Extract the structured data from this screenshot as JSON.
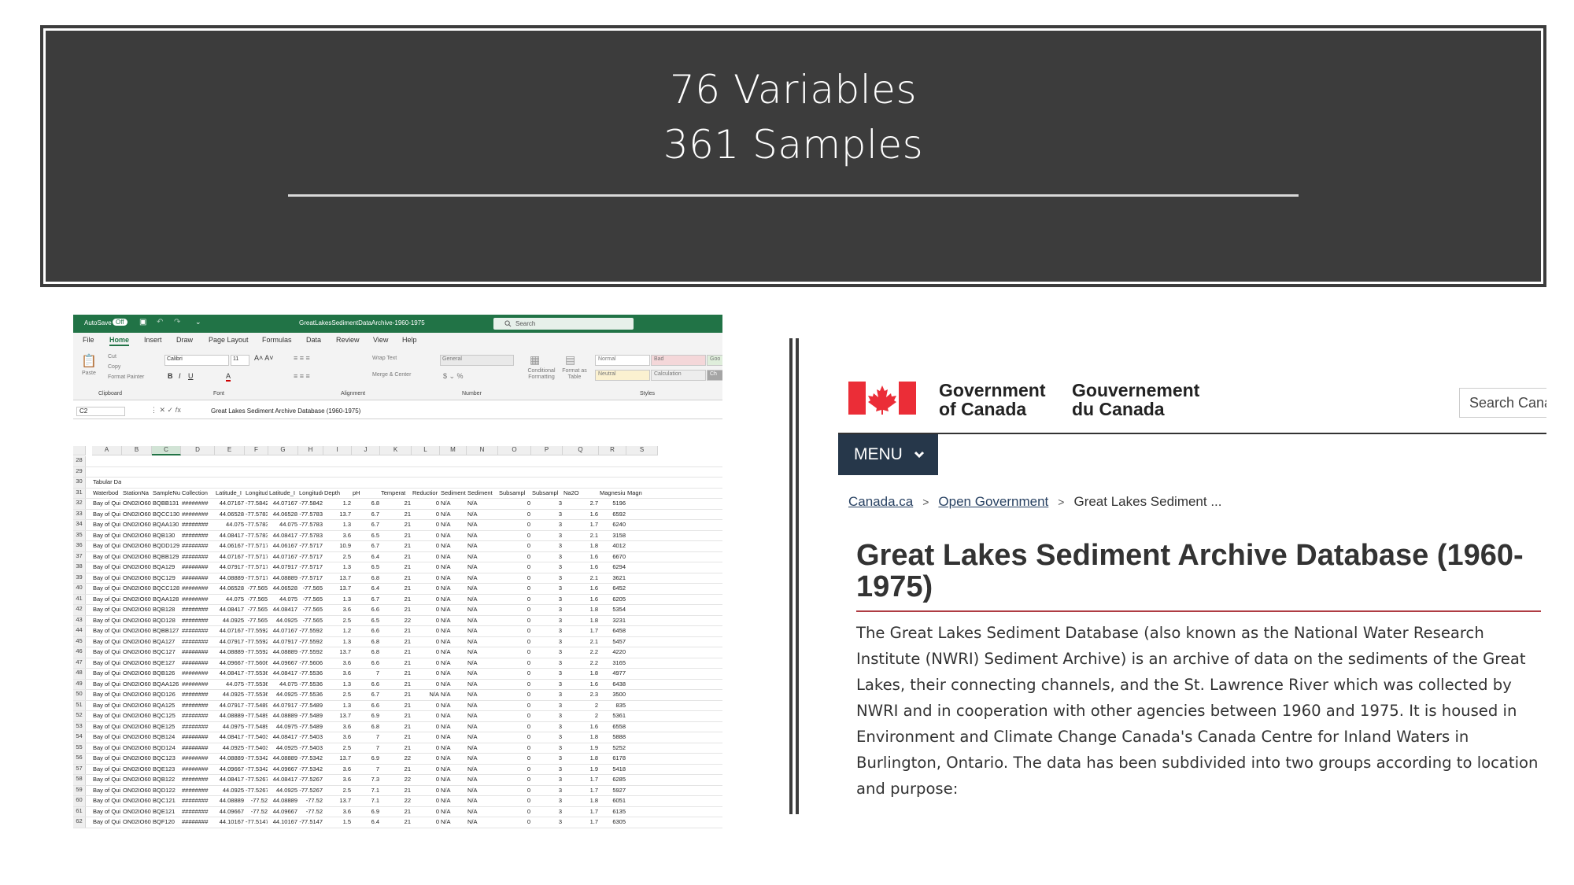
{
  "banner": {
    "line1": "76 Variables",
    "line2": "361 Samples"
  },
  "excel": {
    "title_bar": {
      "autosave": "AutoSave",
      "autosave_state": "Off",
      "filename": "GreatLakesSedimentDataArchive-1960-1975",
      "search_placeholder": "Search"
    },
    "tabs": [
      "File",
      "Home",
      "Insert",
      "Draw",
      "Page Layout",
      "Formulas",
      "Data",
      "Review",
      "View",
      "Help"
    ],
    "active_tab": "Home",
    "ribbon": {
      "paste": "Paste",
      "cut": "Cut",
      "copy": "Copy",
      "format_painter": "Format Painter",
      "font_name": "Calibri",
      "font_size": "11",
      "wrap_text": "Wrap Text",
      "merge_center": "Merge & Center",
      "number_format": "General",
      "conditional_formatting": "Conditional Formatting",
      "format_as_table": "Format as Table",
      "style_normal": "Normal",
      "style_bad": "Bad",
      "style_good": "Goo",
      "style_neutral": "Neutral",
      "style_calculation": "Calculation",
      "style_check": "Ch",
      "groups": [
        "Clipboard",
        "Font",
        "Alignment",
        "Number",
        "Styles"
      ]
    },
    "name_box": "C2",
    "formula": "Great Lakes Sediment Archive Database (1960-1975)",
    "columns": [
      "A",
      "B",
      "C",
      "D",
      "E",
      "F",
      "G",
      "H",
      "I",
      "J",
      "K",
      "L",
      "M",
      "N",
      "O",
      "P",
      "Q",
      "R",
      "S"
    ],
    "empty_rows": [
      "28",
      "29"
    ],
    "section_row": {
      "num": "30",
      "text": "Tabular Data"
    },
    "header_row": {
      "num": "31",
      "cells": [
        "Waterbod",
        "StationNa",
        "SampleNu",
        "Collection",
        "Latitude_I",
        "Longitude",
        "Latitude_I",
        "Longitude",
        "Depth",
        "pH",
        "Temperat",
        "Reductior",
        "Sediment",
        "Sediment",
        "Subsampl",
        "Subsampl",
        "Na2O",
        "Magnesiu",
        "Magn"
      ]
    },
    "rows": [
      [
        "32",
        "Bay of Qui",
        "ON02IO60",
        "BQBB131",
        "########",
        "44.07167",
        "-77.5842",
        "44.07167",
        "-77.5842",
        "1.2",
        "6.8",
        "21",
        "0",
        "N/A",
        "N/A",
        "0",
        "3",
        "2.7",
        "5196"
      ],
      [
        "33",
        "Bay of Qui",
        "ON02IO60",
        "BQCC130",
        "########",
        "44.06528",
        "-77.5783",
        "44.06528",
        "-77.5783",
        "13.7",
        "6.7",
        "21",
        "0",
        "N/A",
        "N/A",
        "0",
        "3",
        "1.6",
        "6592"
      ],
      [
        "34",
        "Bay of Qui",
        "ON02IO60",
        "BQAA130",
        "########",
        "44.075",
        "-77.5783",
        "44.075",
        "-77.5783",
        "1.3",
        "6.7",
        "21",
        "0",
        "N/A",
        "N/A",
        "0",
        "3",
        "1.7",
        "6240"
      ],
      [
        "35",
        "Bay of Qui",
        "ON02IO60",
        "BQB130",
        "########",
        "44.08417",
        "-77.5783",
        "44.08417",
        "-77.5783",
        "3.6",
        "6.5",
        "21",
        "0",
        "N/A",
        "N/A",
        "0",
        "3",
        "2.1",
        "3158"
      ],
      [
        "36",
        "Bay of Qui",
        "ON02IO60",
        "BQDD129",
        "########",
        "44.06167",
        "-77.5717",
        "44.06167",
        "-77.5717",
        "10.9",
        "6.7",
        "21",
        "0",
        "N/A",
        "N/A",
        "0",
        "3",
        "1.8",
        "4012"
      ],
      [
        "37",
        "Bay of Qui",
        "ON02IO60",
        "BQBB129",
        "########",
        "44.07167",
        "-77.5717",
        "44.07167",
        "-77.5717",
        "2.5",
        "6.4",
        "21",
        "0",
        "N/A",
        "N/A",
        "0",
        "3",
        "1.6",
        "6670"
      ],
      [
        "38",
        "Bay of Qui",
        "ON02IO60",
        "BQA129",
        "########",
        "44.07917",
        "-77.5717",
        "44.07917",
        "-77.5717",
        "1.3",
        "6.5",
        "21",
        "0",
        "N/A",
        "N/A",
        "0",
        "3",
        "1.6",
        "6294"
      ],
      [
        "39",
        "Bay of Qui",
        "ON02IO60",
        "BQC129",
        "########",
        "44.08889",
        "-77.5717",
        "44.08889",
        "-77.5717",
        "13.7",
        "6.8",
        "21",
        "0",
        "N/A",
        "N/A",
        "0",
        "3",
        "2.1",
        "3621"
      ],
      [
        "40",
        "Bay of Qui",
        "ON02IO60",
        "BQCC128",
        "########",
        "44.06528",
        "-77.565",
        "44.06528",
        "-77.565",
        "13.7",
        "6.4",
        "21",
        "0",
        "N/A",
        "N/A",
        "0",
        "3",
        "1.6",
        "6452"
      ],
      [
        "41",
        "Bay of Qui",
        "ON02IO60",
        "BQAA128",
        "########",
        "44.075",
        "-77.565",
        "44.075",
        "-77.565",
        "1.3",
        "6.7",
        "21",
        "0",
        "N/A",
        "N/A",
        "0",
        "3",
        "1.6",
        "6205"
      ],
      [
        "42",
        "Bay of Qui",
        "ON02IO60",
        "BQB128",
        "########",
        "44.08417",
        "-77.565",
        "44.08417",
        "-77.565",
        "3.6",
        "6.6",
        "21",
        "0",
        "N/A",
        "N/A",
        "0",
        "3",
        "1.8",
        "5354"
      ],
      [
        "43",
        "Bay of Qui",
        "ON02IO60",
        "BQD128",
        "########",
        "44.0925",
        "-77.565",
        "44.0925",
        "-77.565",
        "2.5",
        "6.5",
        "22",
        "0",
        "N/A",
        "N/A",
        "0",
        "3",
        "1.8",
        "3231"
      ],
      [
        "44",
        "Bay of Qui",
        "ON02IO60",
        "BQBB127",
        "########",
        "44.07167",
        "-77.5592",
        "44.07167",
        "-77.5592",
        "1.2",
        "6.6",
        "21",
        "0",
        "N/A",
        "N/A",
        "0",
        "3",
        "1.7",
        "6458"
      ],
      [
        "45",
        "Bay of Qui",
        "ON02IO60",
        "BQA127",
        "########",
        "44.07917",
        "-77.5592",
        "44.07917",
        "-77.5592",
        "1.3",
        "6.8",
        "21",
        "0",
        "N/A",
        "N/A",
        "0",
        "3",
        "2.1",
        "5457"
      ],
      [
        "46",
        "Bay of Qui",
        "ON02IO60",
        "BQC127",
        "########",
        "44.08889",
        "-77.5592",
        "44.08889",
        "-77.5592",
        "13.7",
        "6.8",
        "21",
        "0",
        "N/A",
        "N/A",
        "0",
        "3",
        "2.2",
        "4220"
      ],
      [
        "47",
        "Bay of Qui",
        "ON02IO60",
        "BQE127",
        "########",
        "44.09667",
        "-77.5606",
        "44.09667",
        "-77.5606",
        "3.6",
        "6.6",
        "21",
        "0",
        "N/A",
        "N/A",
        "0",
        "3",
        "2.2",
        "3165"
      ],
      [
        "48",
        "Bay of Qui",
        "ON02IO60",
        "BQB126",
        "########",
        "44.08417",
        "-77.5536",
        "44.08417",
        "-77.5536",
        "3.6",
        "7",
        "21",
        "0",
        "N/A",
        "N/A",
        "0",
        "3",
        "1.8",
        "4977"
      ],
      [
        "49",
        "Bay of Qui",
        "ON02IO60",
        "BQAA126",
        "########",
        "44.075",
        "-77.5536",
        "44.075",
        "-77.5536",
        "1.3",
        "6.6",
        "21",
        "0",
        "N/A",
        "N/A",
        "0",
        "3",
        "1.6",
        "6438"
      ],
      [
        "50",
        "Bay of Qui",
        "ON02IO60",
        "BQD126",
        "########",
        "44.0925",
        "-77.5536",
        "44.0925",
        "-77.5536",
        "2.5",
        "6.7",
        "21",
        "N/A",
        "N/A",
        "N/A",
        "0",
        "3",
        "2.3",
        "3500"
      ],
      [
        "51",
        "Bay of Qui",
        "ON02IO60",
        "BQA125",
        "########",
        "44.07917",
        "-77.5489",
        "44.07917",
        "-77.5489",
        "1.3",
        "6.6",
        "21",
        "0",
        "N/A",
        "N/A",
        "0",
        "3",
        "2",
        "835"
      ],
      [
        "52",
        "Bay of Qui",
        "ON02IO60",
        "BQC125",
        "########",
        "44.08889",
        "-77.5489",
        "44.08889",
        "-77.5489",
        "13.7",
        "6.9",
        "21",
        "0",
        "N/A",
        "N/A",
        "0",
        "3",
        "2",
        "5361"
      ],
      [
        "53",
        "Bay of Qui",
        "ON02IO60",
        "BQE125",
        "########",
        "44.0975",
        "-77.5489",
        "44.0975",
        "-77.5489",
        "3.6",
        "6.8",
        "21",
        "0",
        "N/A",
        "N/A",
        "0",
        "3",
        "1.6",
        "6558"
      ],
      [
        "54",
        "Bay of Qui",
        "ON02IO60",
        "BQB124",
        "########",
        "44.08417",
        "-77.5403",
        "44.08417",
        "-77.5403",
        "3.6",
        "7",
        "21",
        "0",
        "N/A",
        "N/A",
        "0",
        "3",
        "1.8",
        "5888"
      ],
      [
        "55",
        "Bay of Qui",
        "ON02IO60",
        "BQD124",
        "########",
        "44.0925",
        "-77.5403",
        "44.0925",
        "-77.5403",
        "2.5",
        "7",
        "21",
        "0",
        "N/A",
        "N/A",
        "0",
        "3",
        "1.9",
        "5252"
      ],
      [
        "56",
        "Bay of Qui",
        "ON02IO60",
        "BQC123",
        "########",
        "44.08889",
        "-77.5342",
        "44.08889",
        "-77.5342",
        "13.7",
        "6.9",
        "22",
        "0",
        "N/A",
        "N/A",
        "0",
        "3",
        "1.8",
        "6178"
      ],
      [
        "57",
        "Bay of Qui",
        "ON02IO60",
        "BQE123",
        "########",
        "44.09667",
        "-77.5342",
        "44.09667",
        "-77.5342",
        "3.6",
        "7",
        "21",
        "0",
        "N/A",
        "N/A",
        "0",
        "3",
        "1.9",
        "5418"
      ],
      [
        "58",
        "Bay of Qui",
        "ON02IO60",
        "BQB122",
        "########",
        "44.08417",
        "-77.5267",
        "44.08417",
        "-77.5267",
        "3.6",
        "7.3",
        "22",
        "0",
        "N/A",
        "N/A",
        "0",
        "3",
        "1.7",
        "6285"
      ],
      [
        "59",
        "Bay of Qui",
        "ON02IO60",
        "BQD122",
        "########",
        "44.0925",
        "-77.5267",
        "44.0925",
        "-77.5267",
        "2.5",
        "7.1",
        "21",
        "0",
        "N/A",
        "N/A",
        "0",
        "3",
        "1.7",
        "5927"
      ],
      [
        "60",
        "Bay of Qui",
        "ON02IO60",
        "BQC121",
        "########",
        "44.08889",
        "-77.52",
        "44.08889",
        "-77.52",
        "13.7",
        "7.1",
        "22",
        "0",
        "N/A",
        "N/A",
        "0",
        "3",
        "1.8",
        "6051"
      ],
      [
        "61",
        "Bay of Qui",
        "ON02IO60",
        "BQE121",
        "########",
        "44.09667",
        "-77.52",
        "44.09667",
        "-77.52",
        "3.6",
        "6.9",
        "21",
        "0",
        "N/A",
        "N/A",
        "0",
        "3",
        "1.7",
        "6135"
      ],
      [
        "62",
        "Bay of Qui",
        "ON02IO60",
        "BQF120",
        "########",
        "44.10167",
        "-77.5147",
        "44.10167",
        "-77.5147",
        "1.5",
        "6.4",
        "21",
        "0",
        "N/A",
        "N/A",
        "0",
        "3",
        "1.7",
        "6305"
      ]
    ]
  },
  "canada": {
    "gov_en_line1": "Government",
    "gov_en_line2": "of Canada",
    "gov_fr_line1": "Gouvernement",
    "gov_fr_line2": "du Canada",
    "search_placeholder": "Search Canad",
    "menu_label": "MENU",
    "breadcrumb": [
      "Canada.ca",
      "Open Government",
      "Great Lakes Sediment ..."
    ],
    "title": "Great Lakes Sediment Archive Database (1960-1975)",
    "body": "The Great Lakes Sediment Database (also known as the National Water Research Institute (NWRI) Sediment Archive) is an archive of data on the sediments of the Great Lakes, their connecting channels, and the St. Lawrence River which was collected by NWRI and in cooperation with other agencies between 1960 and 1975. It is housed in Environment and Climate Change Canada's Canada Centre for Inland Waters in Burlington, Ontario. The data has been subdivided into two groups according to location and purpose:",
    "colors": {
      "red": "#eb2d37",
      "navy": "#26374a",
      "title_rule": "#af3c43"
    }
  }
}
